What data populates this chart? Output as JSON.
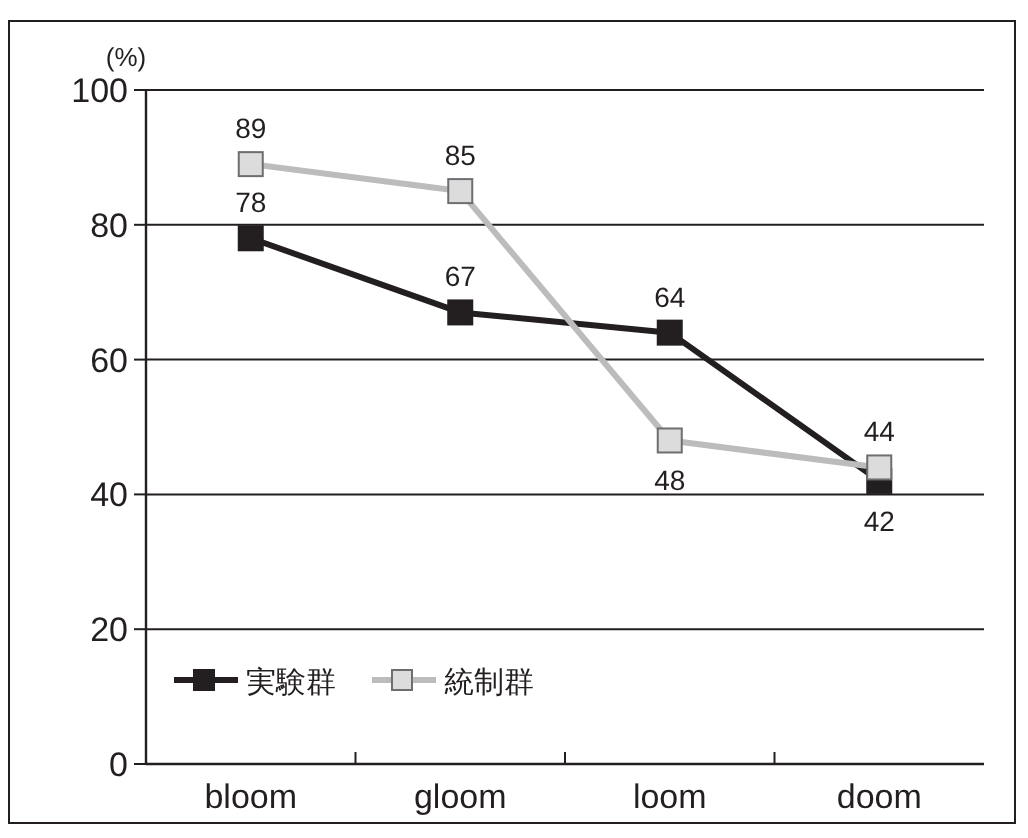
{
  "chart_data": {
    "type": "line",
    "ylabel": "(%)",
    "categories": [
      "bloom",
      "gloom",
      "loom",
      "doom"
    ],
    "series": [
      {
        "name": "実験群",
        "color": "#231f20",
        "values": [
          78,
          67,
          64,
          42
        ]
      },
      {
        "name": "統制群",
        "color": "#bcbcbc",
        "values": [
          89,
          85,
          48,
          44
        ]
      }
    ],
    "ylim": [
      0,
      100
    ],
    "yticks": [
      0,
      20,
      40,
      60,
      80,
      100
    ],
    "grid": "y",
    "legend": "bottom left",
    "marker": "square",
    "line_style": "solid",
    "data_labels": true
  }
}
